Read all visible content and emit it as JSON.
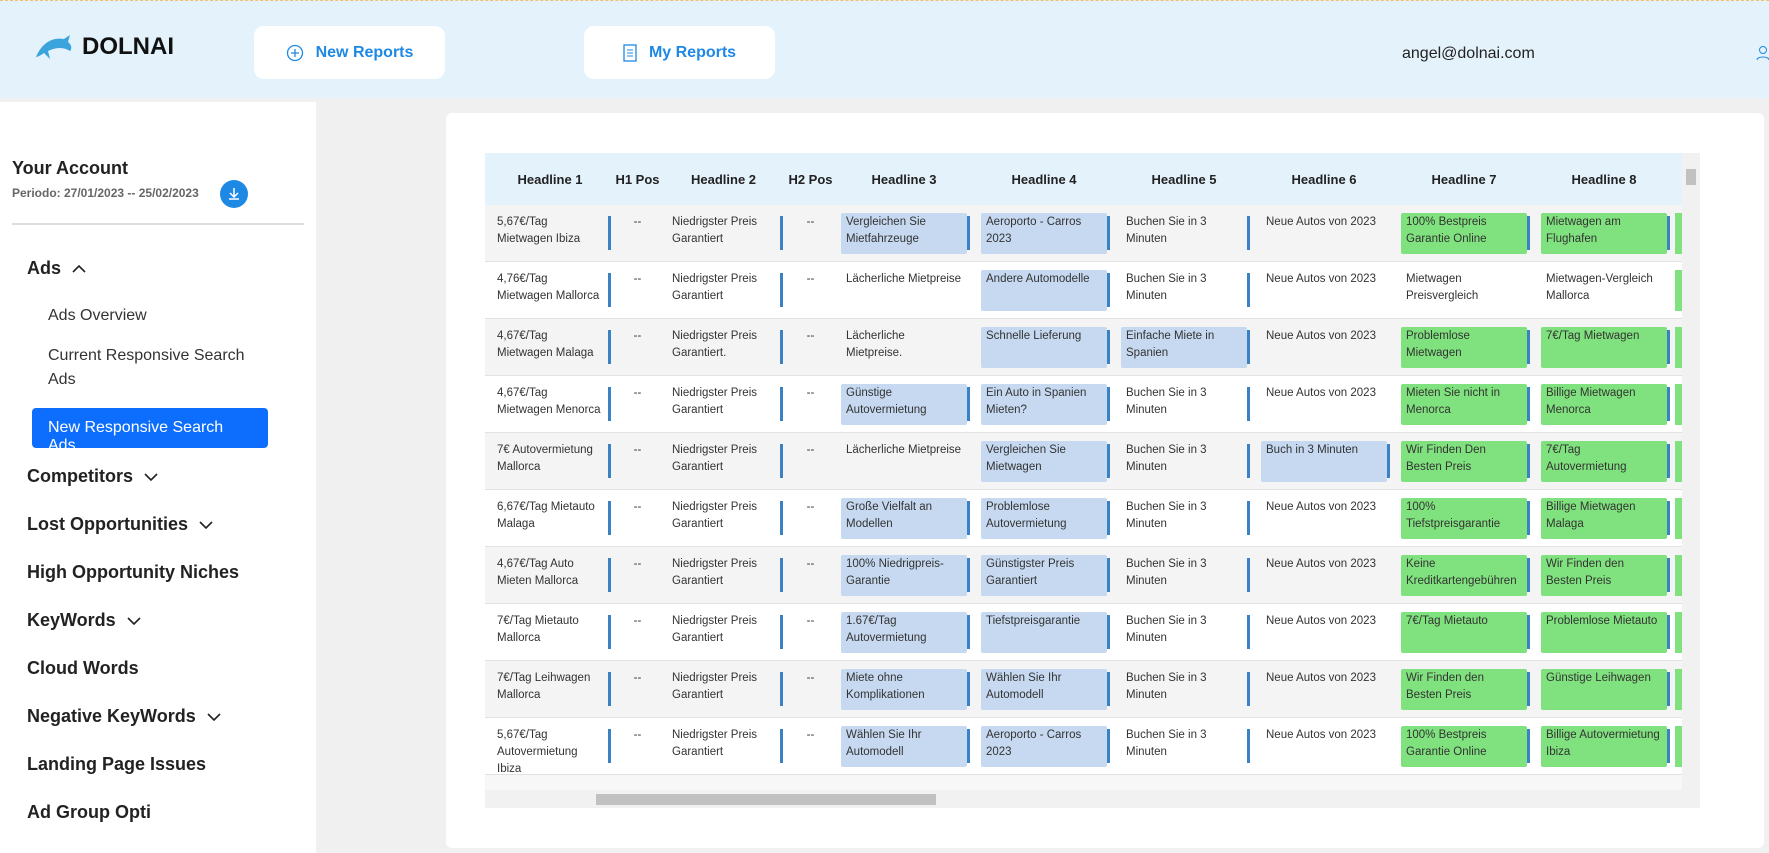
{
  "header": {
    "brand": "DOLNAI",
    "nav": [
      "New Reports",
      "My Reports"
    ],
    "user": "angel@dolnai.com"
  },
  "sidebar": {
    "title": "Your Account",
    "period": "Periodo: 27/01/2023 -- 25/02/2023",
    "sections": [
      {
        "label": "Ads",
        "expanded": true,
        "items": [
          "Ads Overview",
          "Current Responsive Search Ads",
          "New Responsive Search Ads"
        ],
        "active_item": 2
      },
      {
        "label": "Competitors",
        "expandable": true
      },
      {
        "label": "Lost Opportunities",
        "expandable": true
      },
      {
        "label": "High Opportunity Niches"
      },
      {
        "label": "KeyWords",
        "expandable": true
      },
      {
        "label": "Cloud Words"
      },
      {
        "label": "Negative KeyWords",
        "expandable": true
      },
      {
        "label": "Landing Page Issues"
      },
      {
        "label": "Ad Group Opti"
      }
    ]
  },
  "table": {
    "columns": [
      "Headline 1",
      "H1 Pos",
      "Headline 2",
      "H2 Pos",
      "Headline 3",
      "Headline 4",
      "Headline 5",
      "Headline 6",
      "Headline 7",
      "Headline 8"
    ],
    "highlight_colors": {
      "b": "#c6d9f1",
      "g": "#80e27e"
    },
    "rows": [
      {
        "cells": [
          "5,67€/Tag Mietwagen Ibiza",
          "--",
          "Niedrigster Preis Garantiert",
          "--",
          "Vergleichen Sie Mietfahrzeuge",
          "Aeroporto - Carros 2023",
          "Buchen Sie in 3 Minuten",
          "Neue Autos von 2023",
          "100% Bestpreis Garantie Online",
          "Mietwagen am Flughafen"
        ],
        "fills": [
          null,
          null,
          null,
          null,
          "b",
          "b",
          null,
          null,
          "g",
          "g"
        ]
      },
      {
        "cells": [
          "4,76€/Tag Mietwagen Mallorca",
          "--",
          "Niedrigster Preis Garantiert",
          "--",
          "Lächerliche Mietpreise",
          "Andere Automodelle",
          "Buchen Sie in 3 Minuten",
          "Neue Autos von 2023",
          "Mietwagen Preisvergleich",
          "Mietwagen-Vergleich Mallorca"
        ],
        "fills": [
          null,
          null,
          null,
          null,
          null,
          "b",
          null,
          null,
          null,
          null
        ]
      },
      {
        "cells": [
          "4,67€/Tag Mietwagen Malaga",
          "--",
          "Niedrigster Preis Garantiert.",
          "--",
          "Lächerliche Mietpreise.",
          "Schnelle Lieferung",
          "Einfache Miete in Spanien",
          "Neue Autos von 2023",
          "Problemlose Mietwagen",
          "7€/Tag Mietwagen"
        ],
        "fills": [
          null,
          null,
          null,
          null,
          null,
          "b",
          "b",
          null,
          "g",
          "g"
        ]
      },
      {
        "cells": [
          "4,67€/Tag Mietwagen Menorca",
          "--",
          "Niedrigster Preis Garantiert",
          "--",
          "Günstige Autovermietung",
          "Ein Auto in Spanien Mieten?",
          "Buchen Sie in 3 Minuten",
          "Neue Autos von 2023",
          "Mieten Sie nicht in Menorca",
          "Billige Mietwagen Menorca"
        ],
        "fills": [
          null,
          null,
          null,
          null,
          "b",
          "b",
          null,
          null,
          "g",
          "g"
        ]
      },
      {
        "cells": [
          "7€ Autovermietung Mallorca",
          "--",
          "Niedrigster Preis Garantiert",
          "--",
          "Lächerliche Mietpreise",
          "Vergleichen Sie Mietwagen",
          "Buchen Sie in 3 Minuten",
          "Buch in 3 Minuten",
          "Wir Finden Den Besten Preis",
          "7€/Tag Autovermietung"
        ],
        "fills": [
          null,
          null,
          null,
          null,
          null,
          "b",
          null,
          "b",
          "g",
          "g"
        ]
      },
      {
        "cells": [
          "6,67€/Tag Mietauto Malaga",
          "--",
          "Niedrigster Preis Garantiert",
          "--",
          "Große Vielfalt an Modellen",
          "Problemlose Autovermietung",
          "Buchen Sie in 3 Minuten",
          "Neue Autos von 2023",
          "100% Tiefstpreisgarantie",
          "Billige Mietwagen Malaga"
        ],
        "fills": [
          null,
          null,
          null,
          null,
          "b",
          "b",
          null,
          null,
          "g",
          "g"
        ]
      },
      {
        "cells": [
          "4,67€/Tag Auto Mieten Mallorca",
          "--",
          "Niedrigster Preis Garantiert",
          "--",
          "100% Niedrigpreis-Garantie",
          "Günstigster Preis Garantiert",
          "Buchen Sie in 3 Minuten",
          "Neue Autos von 2023",
          "Keine Kreditkartengebühren",
          "Wir Finden den Besten Preis"
        ],
        "fills": [
          null,
          null,
          null,
          null,
          "b",
          "b",
          null,
          null,
          "g",
          "g"
        ]
      },
      {
        "cells": [
          "7€/Tag Mietauto Mallorca",
          "--",
          "Niedrigster Preis Garantiert",
          "--",
          "1.67€/Tag Autovermietung",
          "Tiefstpreisgarantie",
          "Buchen Sie in 3 Minuten",
          "Neue Autos von 2023",
          "7€/Tag Mietauto",
          "Problemlose Mietauto"
        ],
        "fills": [
          null,
          null,
          null,
          null,
          "b",
          "b",
          null,
          null,
          "g",
          "g"
        ]
      },
      {
        "cells": [
          "7€/Tag Leihwagen Mallorca",
          "--",
          "Niedrigster Preis Garantiert",
          "--",
          "Miete ohne Komplikationen",
          "Wählen Sie Ihr Automodell",
          "Buchen Sie in 3 Minuten",
          "Neue Autos von 2023",
          "Wir Finden den Besten Preis",
          "Günstige Leihwagen"
        ],
        "fills": [
          null,
          null,
          null,
          null,
          "b",
          "b",
          null,
          null,
          "g",
          "g"
        ]
      },
      {
        "cells": [
          "5,67€/Tag Autovermietung Ibiza",
          "--",
          "Niedrigster Preis Garantiert",
          "--",
          "Wählen Sie Ihr Automodell",
          "Aeroporto - Carros 2023",
          "Buchen Sie in 3 Minuten",
          "Neue Autos von 2023",
          "100% Bestpreis Garantie Online",
          "Billige Autovermietung Ibiza"
        ],
        "fills": [
          null,
          null,
          null,
          null,
          "b",
          "b",
          null,
          null,
          "g",
          "g"
        ]
      }
    ]
  }
}
